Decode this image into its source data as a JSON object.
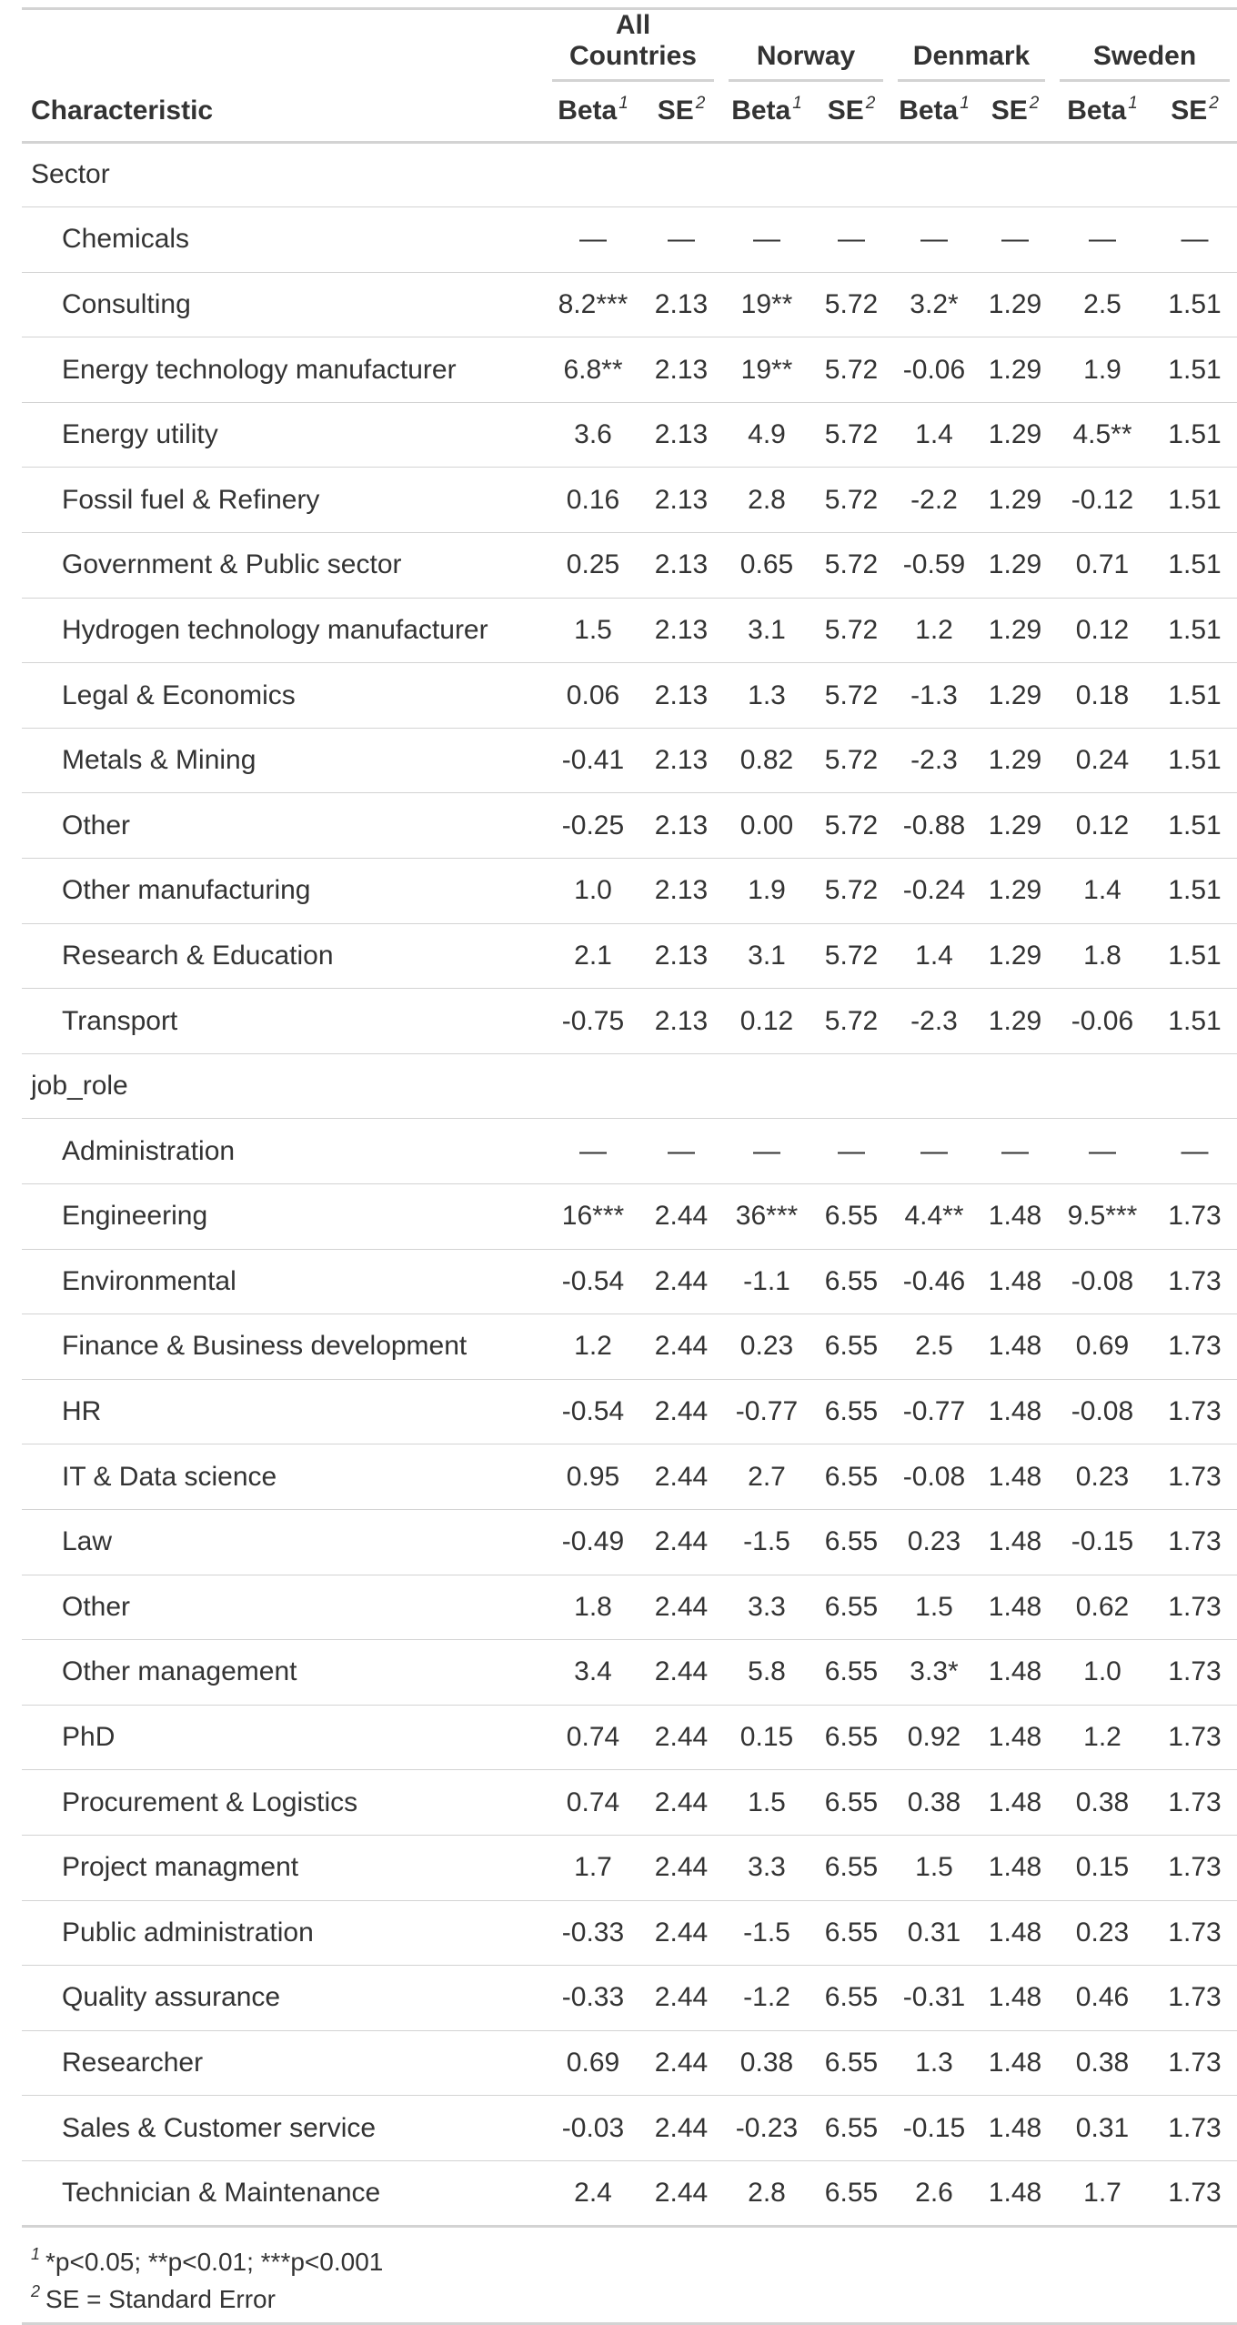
{
  "table": {
    "header": {
      "characteristic_label": "Characteristic",
      "spanners": [
        "All Countries",
        "Norway",
        "Denmark",
        "Sweden"
      ],
      "beta_label": "Beta",
      "beta_note": "1",
      "se_label": "SE",
      "se_note": "2"
    },
    "groups": [
      {
        "label": "Sector",
        "rows": [
          {
            "label": "Chemicals",
            "values": [
              "—",
              "—",
              "—",
              "—",
              "—",
              "—",
              "—",
              "—"
            ]
          },
          {
            "label": "Consulting",
            "values": [
              "8.2***",
              "2.13",
              "19**",
              "5.72",
              "3.2*",
              "1.29",
              "2.5",
              "1.51"
            ]
          },
          {
            "label": "Energy technology manufacturer",
            "values": [
              "6.8**",
              "2.13",
              "19**",
              "5.72",
              "-0.06",
              "1.29",
              "1.9",
              "1.51"
            ]
          },
          {
            "label": "Energy utility",
            "values": [
              "3.6",
              "2.13",
              "4.9",
              "5.72",
              "1.4",
              "1.29",
              "4.5**",
              "1.51"
            ]
          },
          {
            "label": "Fossil fuel & Refinery",
            "values": [
              "0.16",
              "2.13",
              "2.8",
              "5.72",
              "-2.2",
              "1.29",
              "-0.12",
              "1.51"
            ]
          },
          {
            "label": "Government & Public sector",
            "values": [
              "0.25",
              "2.13",
              "0.65",
              "5.72",
              "-0.59",
              "1.29",
              "0.71",
              "1.51"
            ]
          },
          {
            "label": "Hydrogen technology manufacturer",
            "values": [
              "1.5",
              "2.13",
              "3.1",
              "5.72",
              "1.2",
              "1.29",
              "0.12",
              "1.51"
            ]
          },
          {
            "label": "Legal & Economics",
            "values": [
              "0.06",
              "2.13",
              "1.3",
              "5.72",
              "-1.3",
              "1.29",
              "0.18",
              "1.51"
            ]
          },
          {
            "label": "Metals & Mining",
            "values": [
              "-0.41",
              "2.13",
              "0.82",
              "5.72",
              "-2.3",
              "1.29",
              "0.24",
              "1.51"
            ]
          },
          {
            "label": "Other",
            "values": [
              "-0.25",
              "2.13",
              "0.00",
              "5.72",
              "-0.88",
              "1.29",
              "0.12",
              "1.51"
            ]
          },
          {
            "label": "Other manufacturing",
            "values": [
              "1.0",
              "2.13",
              "1.9",
              "5.72",
              "-0.24",
              "1.29",
              "1.4",
              "1.51"
            ]
          },
          {
            "label": "Research & Education",
            "values": [
              "2.1",
              "2.13",
              "3.1",
              "5.72",
              "1.4",
              "1.29",
              "1.8",
              "1.51"
            ]
          },
          {
            "label": "Transport",
            "values": [
              "-0.75",
              "2.13",
              "0.12",
              "5.72",
              "-2.3",
              "1.29",
              "-0.06",
              "1.51"
            ]
          }
        ]
      },
      {
        "label": "job_role",
        "rows": [
          {
            "label": "Administration",
            "values": [
              "—",
              "—",
              "—",
              "—",
              "—",
              "—",
              "—",
              "—"
            ]
          },
          {
            "label": "Engineering",
            "values": [
              "16***",
              "2.44",
              "36***",
              "6.55",
              "4.4**",
              "1.48",
              "9.5***",
              "1.73"
            ]
          },
          {
            "label": "Environmental",
            "values": [
              "-0.54",
              "2.44",
              "-1.1",
              "6.55",
              "-0.46",
              "1.48",
              "-0.08",
              "1.73"
            ]
          },
          {
            "label": "Finance & Business development",
            "values": [
              "1.2",
              "2.44",
              "0.23",
              "6.55",
              "2.5",
              "1.48",
              "0.69",
              "1.73"
            ]
          },
          {
            "label": "HR",
            "values": [
              "-0.54",
              "2.44",
              "-0.77",
              "6.55",
              "-0.77",
              "1.48",
              "-0.08",
              "1.73"
            ]
          },
          {
            "label": "IT & Data science",
            "values": [
              "0.95",
              "2.44",
              "2.7",
              "6.55",
              "-0.08",
              "1.48",
              "0.23",
              "1.73"
            ]
          },
          {
            "label": "Law",
            "values": [
              "-0.49",
              "2.44",
              "-1.5",
              "6.55",
              "0.23",
              "1.48",
              "-0.15",
              "1.73"
            ]
          },
          {
            "label": "Other",
            "values": [
              "1.8",
              "2.44",
              "3.3",
              "6.55",
              "1.5",
              "1.48",
              "0.62",
              "1.73"
            ]
          },
          {
            "label": "Other management",
            "values": [
              "3.4",
              "2.44",
              "5.8",
              "6.55",
              "3.3*",
              "1.48",
              "1.0",
              "1.73"
            ]
          },
          {
            "label": "PhD",
            "values": [
              "0.74",
              "2.44",
              "0.15",
              "6.55",
              "0.92",
              "1.48",
              "1.2",
              "1.73"
            ]
          },
          {
            "label": "Procurement & Logistics",
            "values": [
              "0.74",
              "2.44",
              "1.5",
              "6.55",
              "0.38",
              "1.48",
              "0.38",
              "1.73"
            ]
          },
          {
            "label": "Project managment",
            "values": [
              "1.7",
              "2.44",
              "3.3",
              "6.55",
              "1.5",
              "1.48",
              "0.15",
              "1.73"
            ]
          },
          {
            "label": "Public administration",
            "values": [
              "-0.33",
              "2.44",
              "-1.5",
              "6.55",
              "0.31",
              "1.48",
              "0.23",
              "1.73"
            ]
          },
          {
            "label": "Quality assurance",
            "values": [
              "-0.33",
              "2.44",
              "-1.2",
              "6.55",
              "-0.31",
              "1.48",
              "0.46",
              "1.73"
            ]
          },
          {
            "label": "Researcher",
            "values": [
              "0.69",
              "2.44",
              "0.38",
              "6.55",
              "1.3",
              "1.48",
              "0.38",
              "1.73"
            ]
          },
          {
            "label": "Sales & Customer service",
            "values": [
              "-0.03",
              "2.44",
              "-0.23",
              "6.55",
              "-0.15",
              "1.48",
              "0.31",
              "1.73"
            ]
          },
          {
            "label": "Technician & Maintenance",
            "values": [
              "2.4",
              "2.44",
              "2.8",
              "6.55",
              "2.6",
              "1.48",
              "1.7",
              "1.73"
            ]
          }
        ]
      }
    ],
    "footnotes": [
      {
        "mark": "1",
        "text": "*p<0.05; **p<0.01; ***p<0.001"
      },
      {
        "mark": "2",
        "text": "SE = Standard Error"
      }
    ]
  }
}
